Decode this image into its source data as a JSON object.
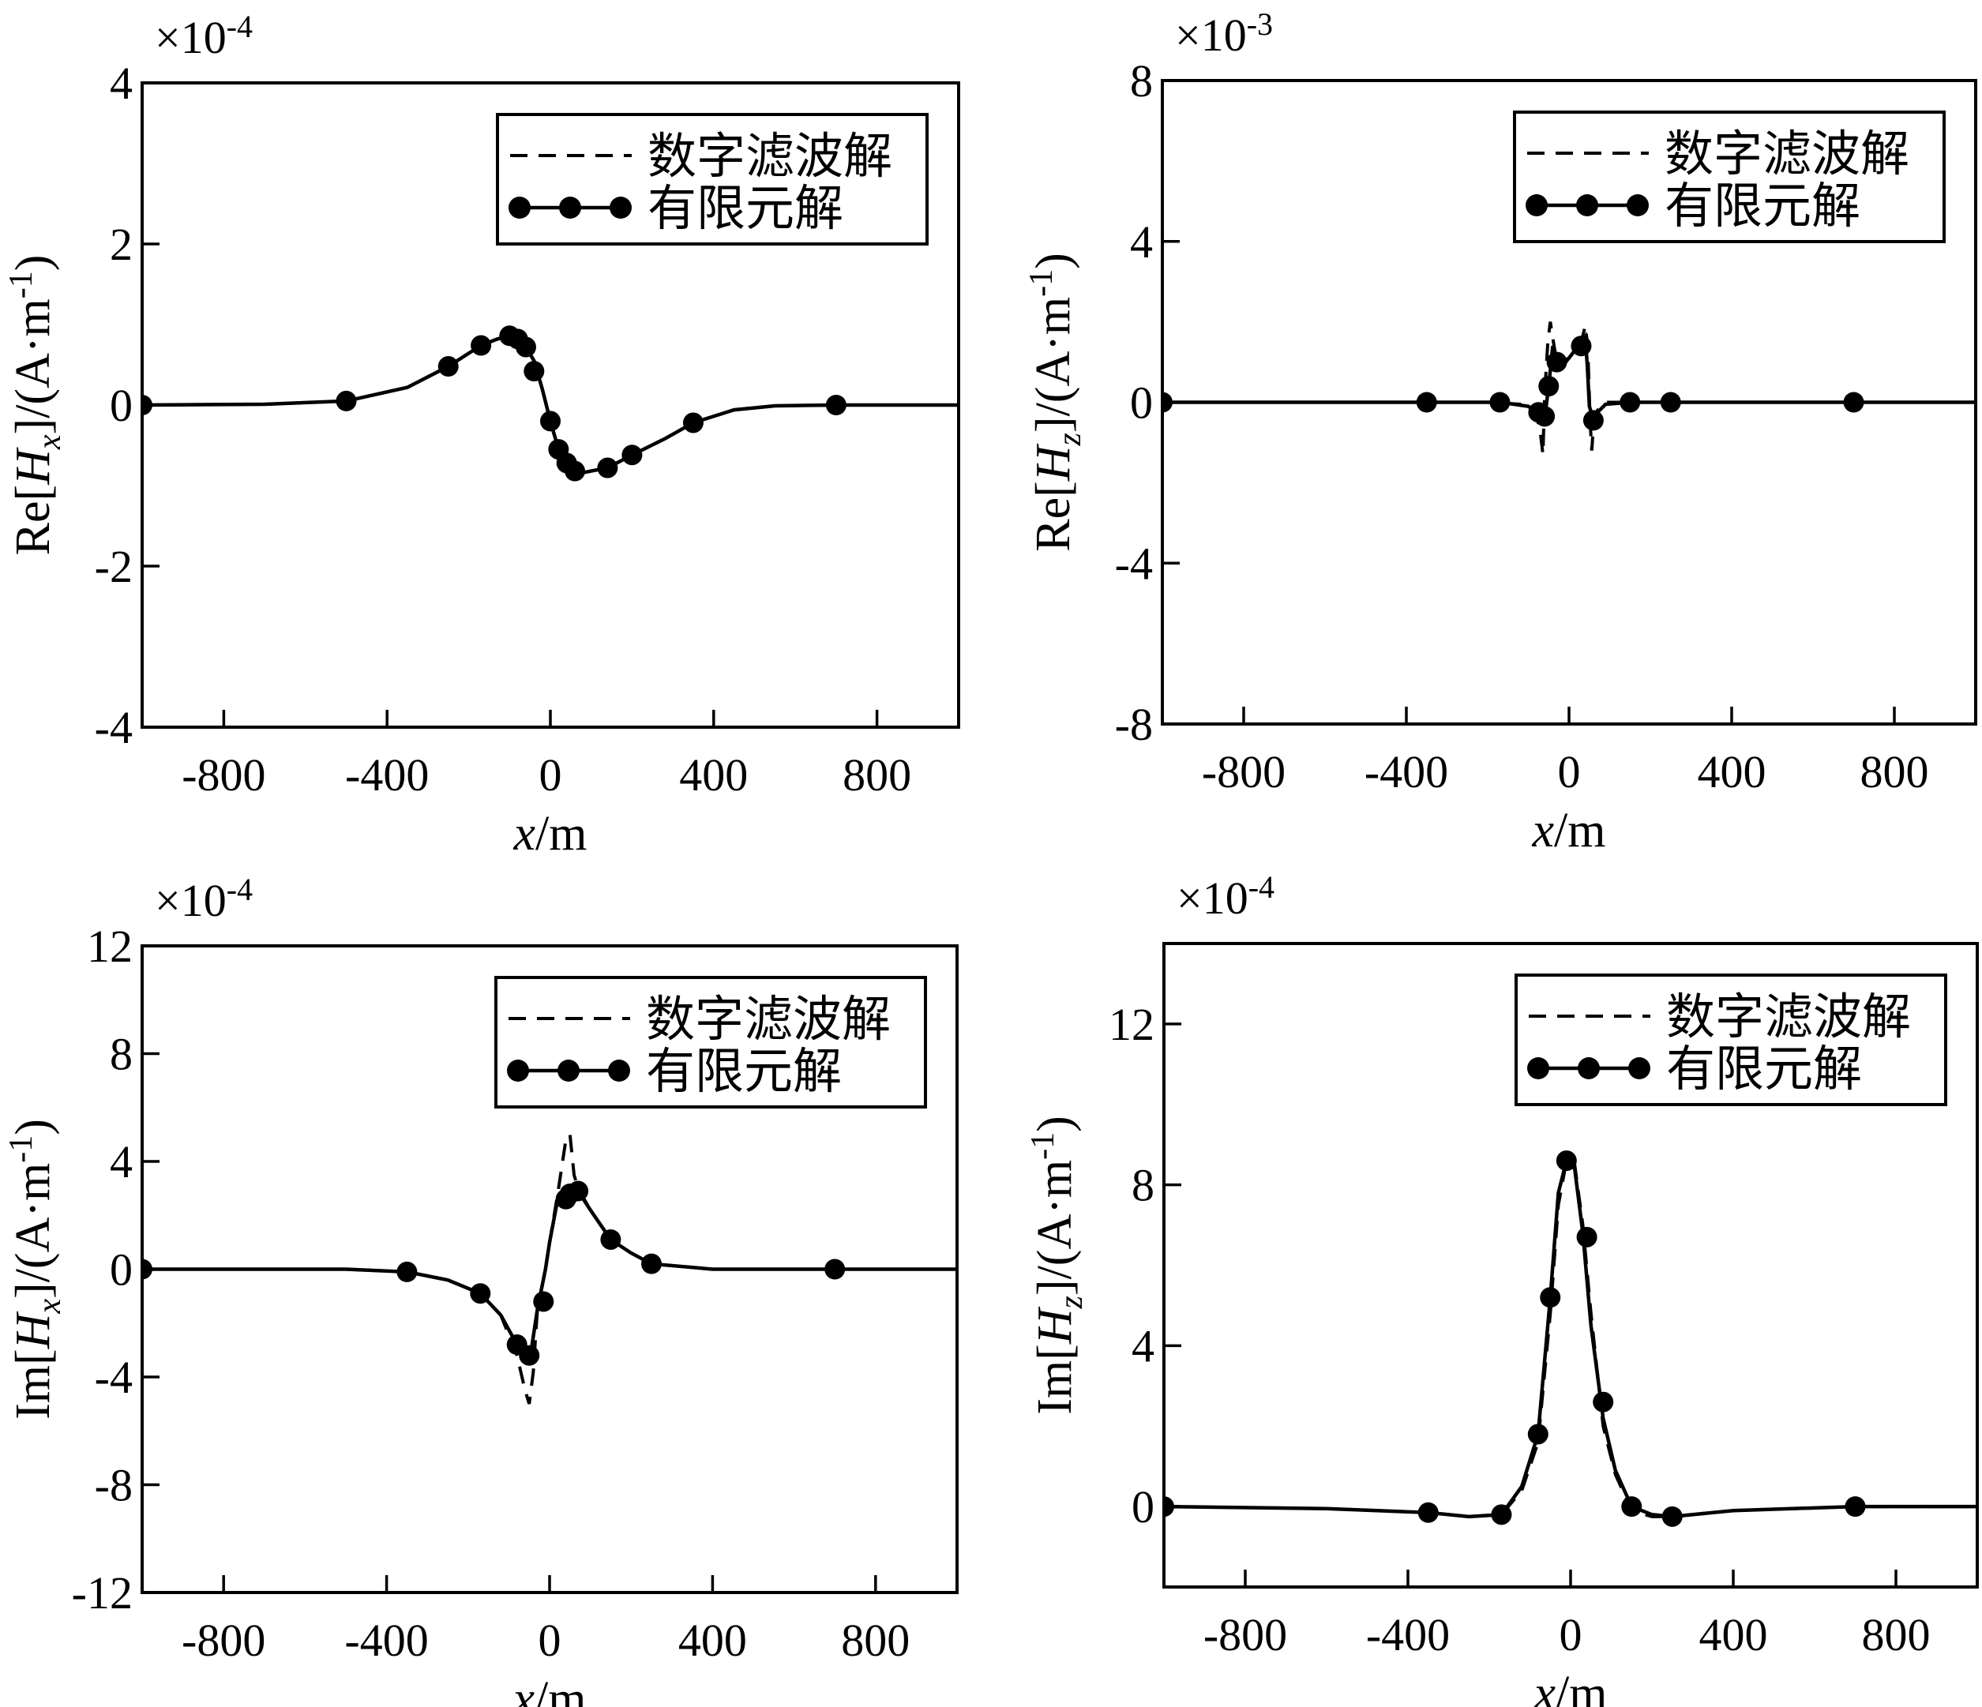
{
  "chart_data": [
    {
      "type": "line",
      "exponent": "×10",
      "exponent_power": "-4",
      "ylabel_prefix": "Re[",
      "ylabel_var": "H",
      "ylabel_sub": "x",
      "ylabel_suffix": "]/(A·m",
      "ylabel_sup": "-1",
      "ylabel_end": ")",
      "xlabel_var": "x",
      "xlabel_unit": "/m",
      "xlim": [
        -1000,
        1000
      ],
      "ylim": [
        -4,
        4
      ],
      "xticks": [
        -800,
        -400,
        0,
        400,
        800
      ],
      "yticks": [
        -4,
        -2,
        0,
        2,
        4
      ],
      "legend": [
        "数字滤波解",
        "有限元解"
      ],
      "legend_position": "top-right",
      "series": [
        {
          "name": "数字滤波解",
          "style": "dashed",
          "x": [
            -1000,
            -700,
            -500,
            -350,
            -250,
            -170,
            -130,
            -100,
            -80,
            -60,
            -40,
            -20,
            0,
            20,
            40,
            60,
            80,
            100,
            140,
            200,
            280,
            350,
            450,
            550,
            700,
            1000
          ],
          "y": [
            0,
            0.01,
            0.05,
            0.22,
            0.48,
            0.74,
            0.82,
            0.86,
            0.84,
            0.72,
            0.55,
            0.2,
            -0.2,
            -0.55,
            -0.75,
            -0.85,
            -0.84,
            -0.82,
            -0.78,
            -0.62,
            -0.42,
            -0.22,
            -0.06,
            -0.01,
            0,
            0
          ]
        },
        {
          "name": "有限元解",
          "style": "solid",
          "x": [
            -1000,
            -700,
            -500,
            -350,
            -250,
            -170,
            -130,
            -100,
            -80,
            -60,
            -40,
            -20,
            0,
            20,
            40,
            60,
            80,
            100,
            140,
            200,
            280,
            350,
            450,
            550,
            700,
            1000
          ],
          "y": [
            0,
            0.01,
            0.05,
            0.22,
            0.48,
            0.74,
            0.82,
            0.86,
            0.84,
            0.72,
            0.55,
            0.2,
            -0.2,
            -0.55,
            -0.75,
            -0.85,
            -0.84,
            -0.82,
            -0.78,
            -0.62,
            -0.42,
            -0.22,
            -0.06,
            -0.01,
            0,
            0
          ],
          "marker_x": [
            -1000,
            -500,
            -250,
            -170,
            -100,
            -80,
            -60,
            -40,
            0,
            20,
            40,
            60,
            140,
            200,
            350,
            700
          ],
          "marker_y": [
            0,
            0.05,
            0.48,
            0.74,
            0.86,
            0.82,
            0.72,
            0.42,
            -0.2,
            -0.55,
            -0.72,
            -0.82,
            -0.78,
            -0.62,
            -0.22,
            0
          ]
        }
      ]
    },
    {
      "type": "line",
      "exponent": "×10",
      "exponent_power": "-3",
      "ylabel_prefix": "Re[",
      "ylabel_var": "H",
      "ylabel_sub": "z",
      "ylabel_suffix": "]/(A·m",
      "ylabel_sup": "-1",
      "ylabel_end": ")",
      "xlabel_var": "x",
      "xlabel_unit": "/m",
      "xlim": [
        -1000,
        1000
      ],
      "ylim": [
        -8,
        8
      ],
      "xticks": [
        -800,
        -400,
        0,
        400,
        800
      ],
      "yticks": [
        -8,
        -4,
        0,
        4,
        8
      ],
      "legend": [
        "数字滤波解",
        "有限元解"
      ],
      "legend_position": "top-right",
      "series": [
        {
          "name": "数字滤波解",
          "style": "dashed",
          "x": [
            -1000,
            -200,
            -120,
            -80,
            -70,
            -64,
            -60,
            -52,
            -46,
            -40,
            -30,
            -15,
            0,
            15,
            30,
            40,
            46,
            52,
            56,
            60,
            70,
            90,
            150,
            1000
          ],
          "y": [
            0,
            0,
            -0.05,
            -0.3,
            -0.8,
            -1.3,
            0.2,
            1.5,
            2.0,
            1.6,
            1.0,
            0.9,
            1.1,
            1.3,
            1.5,
            1.9,
            1.4,
            -0.5,
            -1.2,
            -0.6,
            -0.2,
            0,
            0,
            0
          ]
        },
        {
          "name": "有限元解",
          "style": "solid",
          "x": [
            -1000,
            -350,
            -170,
            -100,
            -75,
            -60,
            -50,
            -40,
            -30,
            -15,
            0,
            15,
            30,
            40,
            45,
            50,
            60,
            70,
            90,
            150,
            250,
            700,
            1000
          ],
          "y": [
            0,
            0,
            0,
            -0.1,
            -0.3,
            -0.4,
            0.4,
            1.4,
            1.1,
            1.0,
            1.1,
            1.3,
            1.4,
            1.6,
            0.9,
            -0.1,
            -0.45,
            -0.25,
            -0.05,
            0,
            0,
            0,
            0
          ],
          "marker_x": [
            -1000,
            -350,
            -170,
            -75,
            -60,
            -50,
            -30,
            30,
            60,
            150,
            250,
            700
          ],
          "marker_y": [
            0,
            0,
            0,
            -0.25,
            -0.35,
            0.4,
            1.0,
            1.4,
            -0.45,
            0,
            0,
            0
          ]
        }
      ]
    },
    {
      "type": "line",
      "exponent": "×10",
      "exponent_power": "-4",
      "ylabel_prefix": "Im[",
      "ylabel_var": "H",
      "ylabel_sub": "x",
      "ylabel_suffix": "]/(A·m",
      "ylabel_sup": "-1",
      "ylabel_end": ")",
      "xlabel_var": "x",
      "xlabel_unit": "/m",
      "xlim": [
        -1000,
        1000
      ],
      "ylim": [
        -12,
        12
      ],
      "xticks": [
        -800,
        -400,
        0,
        400,
        800
      ],
      "yticks": [
        -12,
        -8,
        -4,
        0,
        4,
        8,
        12
      ],
      "legend": [
        "数字滤波解",
        "有限元解"
      ],
      "legend_position": "top-right",
      "series": [
        {
          "name": "数字滤波解",
          "style": "dashed",
          "x": [
            -1000,
            -500,
            -350,
            -250,
            -170,
            -120,
            -80,
            -60,
            -50,
            -40,
            -30,
            -10,
            0,
            20,
            40,
            50,
            60,
            70,
            100,
            150,
            200,
            250,
            400,
            700,
            1000
          ],
          "y": [
            0,
            0,
            -0.1,
            -0.4,
            -0.9,
            -1.7,
            -3.2,
            -4.5,
            -5.0,
            -3.8,
            -1.5,
            0,
            1.0,
            2.8,
            4.8,
            5.0,
            3.5,
            3.0,
            2.2,
            1.1,
            0.6,
            0.2,
            0,
            0,
            0
          ]
        },
        {
          "name": "有限元解",
          "style": "solid",
          "x": [
            -1000,
            -500,
            -350,
            -250,
            -170,
            -120,
            -80,
            -60,
            -45,
            -30,
            -10,
            0,
            20,
            40,
            70,
            100,
            150,
            200,
            250,
            400,
            700,
            1000
          ],
          "y": [
            0,
            0,
            -0.1,
            -0.4,
            -0.9,
            -1.7,
            -2.8,
            -3.2,
            -3.0,
            -1.5,
            0,
            1.0,
            2.6,
            2.8,
            2.9,
            2.2,
            1.1,
            0.6,
            0.2,
            0,
            0,
            0
          ],
          "marker_x": [
            -1000,
            -350,
            -170,
            -80,
            -50,
            -15,
            40,
            50,
            70,
            150,
            250,
            700
          ],
          "marker_y": [
            0,
            -0.1,
            -0.9,
            -2.8,
            -3.2,
            -1.2,
            2.6,
            2.8,
            2.9,
            1.1,
            0.2,
            0
          ]
        }
      ]
    },
    {
      "type": "line",
      "exponent": "×10",
      "exponent_power": "-4",
      "ylabel_prefix": "Im[",
      "ylabel_var": "H",
      "ylabel_sub": "z",
      "ylabel_suffix": "]/(A·m",
      "ylabel_sup": "-1",
      "ylabel_end": ")",
      "xlabel_var": "x",
      "xlabel_unit": "/m",
      "xlim": [
        -1000,
        1000
      ],
      "ylim": [
        -2,
        14
      ],
      "xticks": [
        -800,
        -400,
        0,
        400,
        800
      ],
      "yticks": [
        0,
        4,
        8,
        12
      ],
      "legend": [
        "数字滤波解",
        "有限元解"
      ],
      "legend_position": "top-right",
      "series": [
        {
          "name": "数字滤波解",
          "style": "dashed",
          "x": [
            -1000,
            -600,
            -350,
            -250,
            -170,
            -120,
            -80,
            -50,
            -30,
            -10,
            0,
            10,
            30,
            50,
            80,
            110,
            150,
            200,
            250,
            400,
            700,
            1000
          ],
          "y": [
            0,
            -0.05,
            -0.15,
            -0.25,
            -0.2,
            0.4,
            1.6,
            4.8,
            7.5,
            8.6,
            8.6,
            8.5,
            7.0,
            4.8,
            2.0,
            0.8,
            -0.1,
            -0.25,
            -0.25,
            -0.1,
            0,
            0
          ]
        },
        {
          "name": "有限元解",
          "style": "solid",
          "x": [
            -1000,
            -600,
            -350,
            -250,
            -170,
            -120,
            -80,
            -50,
            -30,
            -10,
            0,
            10,
            30,
            50,
            80,
            110,
            150,
            200,
            250,
            400,
            700,
            1000
          ],
          "y": [
            0,
            -0.05,
            -0.15,
            -0.25,
            -0.2,
            0.5,
            1.8,
            5.2,
            7.8,
            8.6,
            8.5,
            8.4,
            6.8,
            4.5,
            2.2,
            0.9,
            0,
            -0.2,
            -0.25,
            -0.1,
            0,
            0
          ],
          "marker_x": [
            -1000,
            -350,
            -170,
            -80,
            -50,
            -10,
            40,
            80,
            150,
            250,
            700
          ],
          "marker_y": [
            0,
            -0.15,
            -0.2,
            1.8,
            5.2,
            8.6,
            6.7,
            2.6,
            0,
            -0.25,
            0
          ]
        }
      ]
    }
  ]
}
